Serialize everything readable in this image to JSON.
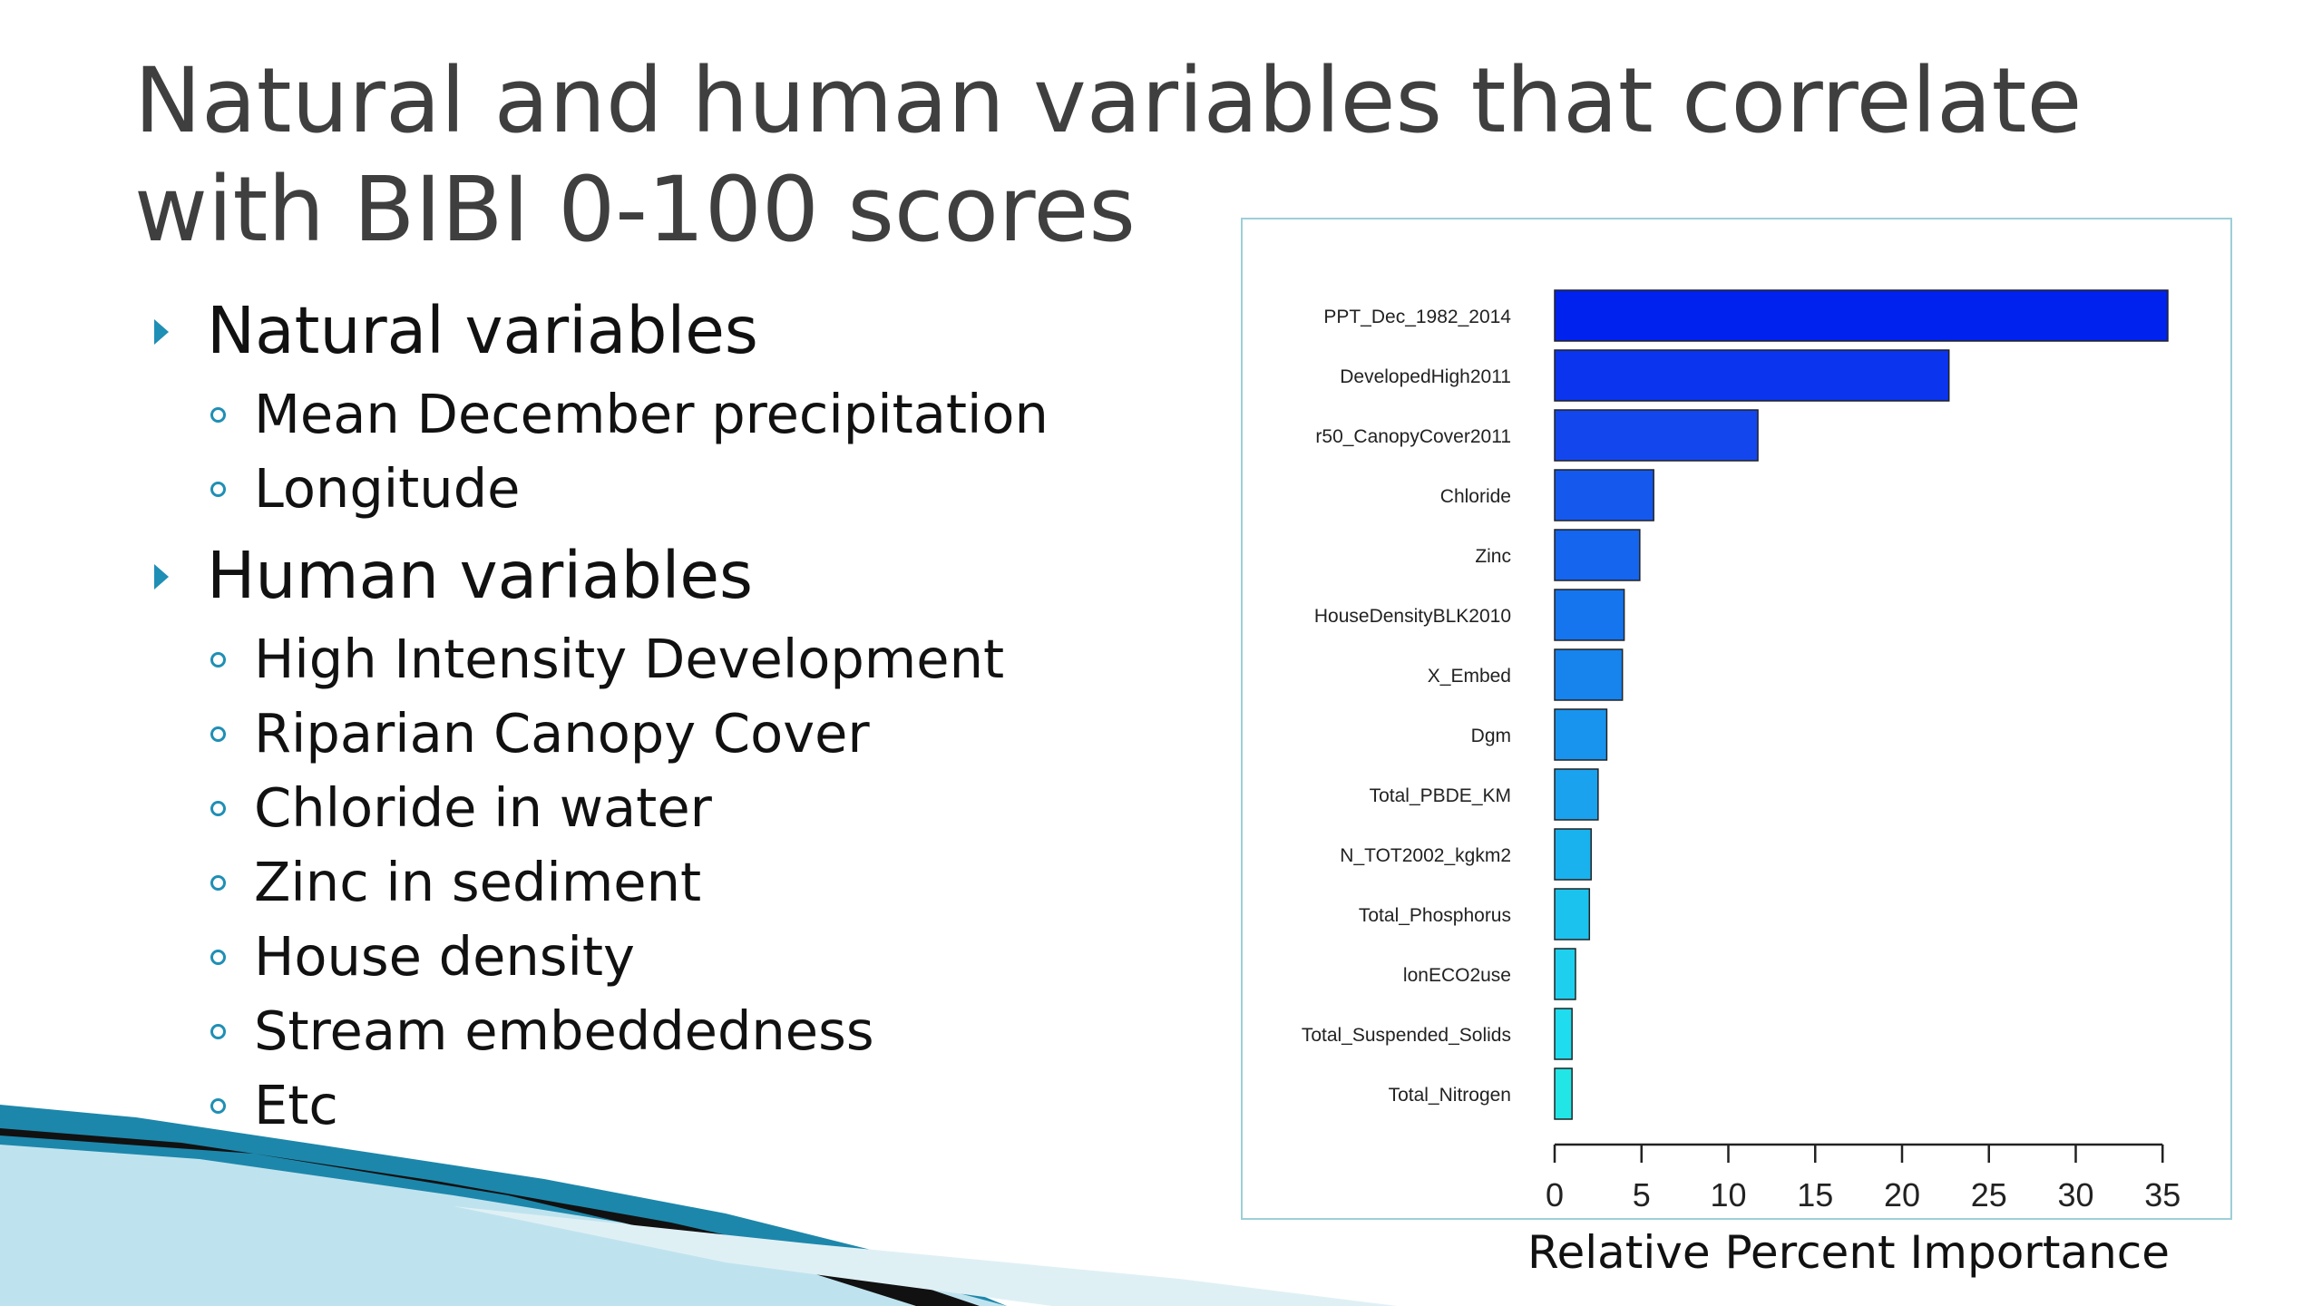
{
  "slide": {
    "title": "Natural and human variables that correlate with BIBI 0-100 scores",
    "sections": [
      {
        "heading": "Natural variables",
        "items": [
          "Mean December precipitation",
          "Longitude"
        ]
      },
      {
        "heading": "Human variables",
        "items": [
          "High Intensity Development",
          "Riparian Canopy Cover",
          "Chloride in water",
          "Zinc in sediment",
          "House density",
          "Stream embeddedness",
          "Etc"
        ]
      }
    ],
    "colors": {
      "title": "#3f3f3f",
      "bullet_accent": "#1f8fb5",
      "frame": "#9ccfd8",
      "deco_teal": "#1d87ab",
      "deco_dark": "#111111"
    }
  },
  "chart_data": {
    "type": "bar",
    "orientation": "horizontal",
    "categories": [
      "PPT_Dec_1982_2014",
      "DevelopedHigh2011",
      "r50_CanopyCover2011",
      "Chloride",
      "Zinc",
      "HouseDensityBLK2010",
      "X_Embed",
      "Dgm",
      "Total_PBDE_KM",
      "N_TOT2002_kgkm2",
      "Total_Phosphorus",
      "lonECO2use",
      "Total_Suspended_Solids",
      "Total_Nitrogen"
    ],
    "values": [
      35.3,
      22.7,
      11.7,
      5.7,
      4.9,
      4.0,
      3.9,
      3.0,
      2.5,
      2.1,
      2.0,
      1.2,
      1.0,
      1.0
    ],
    "xlabel": "Relative Percent Importance",
    "xticks": [
      0,
      5,
      10,
      15,
      20,
      25,
      30,
      35
    ],
    "xlim": [
      0,
      35
    ],
    "grid": false,
    "bar_colors": [
      "#0022ee",
      "#0a34ee",
      "#1446ee",
      "#1558ee",
      "#1565ee",
      "#1575ee",
      "#1784ee",
      "#1994ee",
      "#1aa2ee",
      "#1ab2ee",
      "#1cc2ee",
      "#1ed0ee",
      "#1fdcee",
      "#22e6e6"
    ]
  }
}
